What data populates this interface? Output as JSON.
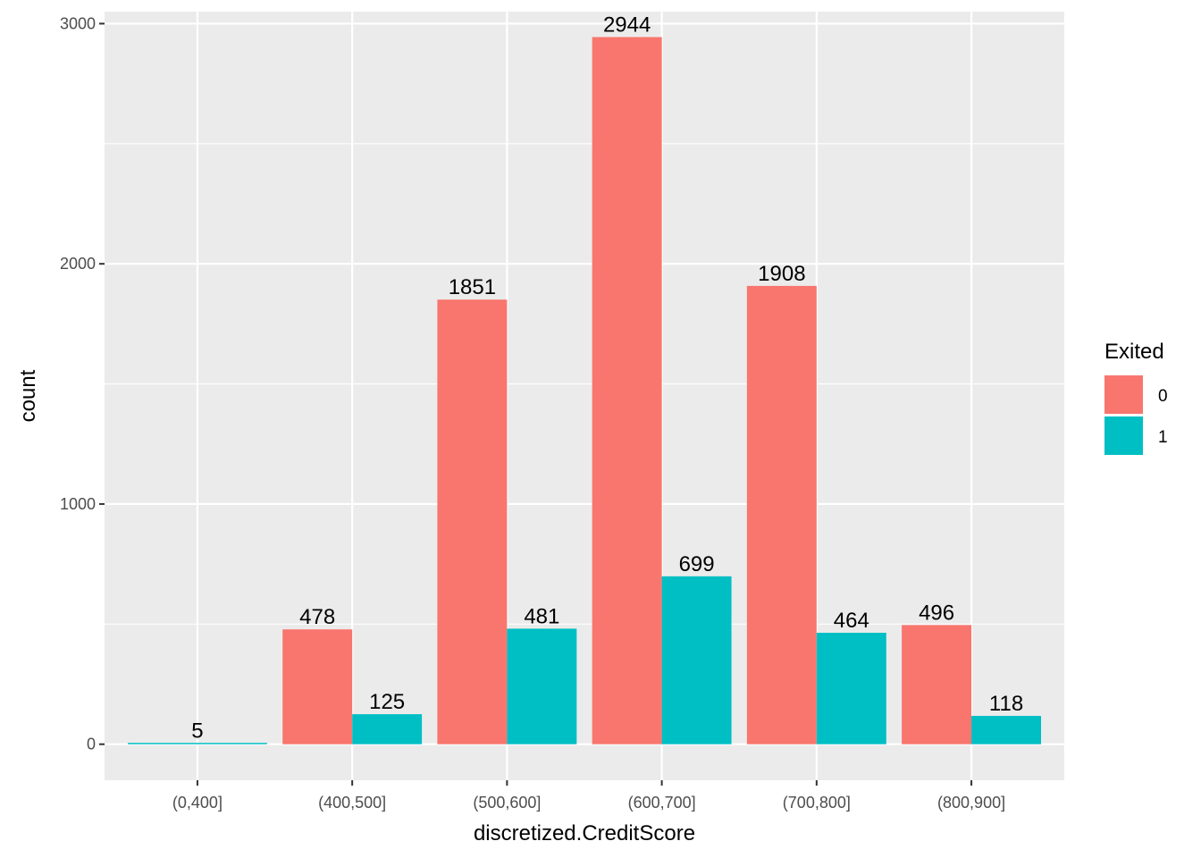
{
  "chart_data": {
    "type": "bar",
    "xlabel": "discretized.CreditScore",
    "ylabel": "count",
    "ylim": [
      -150,
      3050
    ],
    "y_ticks": [
      0,
      1000,
      2000,
      3000
    ],
    "y_tick_labels": [
      "0",
      "1000",
      "2000",
      "3000"
    ],
    "categories": [
      "(0,400]",
      "(400,500]",
      "(500,600]",
      "(600,700]",
      "(700,800]",
      "(800,900]"
    ],
    "legend": {
      "title": "Exited",
      "placement": "right"
    },
    "series": [
      {
        "name": "0",
        "color": "#F8766D",
        "values": [
          null,
          478,
          1851,
          2944,
          1908,
          496
        ]
      },
      {
        "name": "1",
        "color": "#00BFC4",
        "values": [
          5,
          125,
          481,
          699,
          464,
          118
        ]
      }
    ],
    "grid": true,
    "panel_background": "#EBEBEB",
    "grid_color": "#FFFFFF"
  }
}
